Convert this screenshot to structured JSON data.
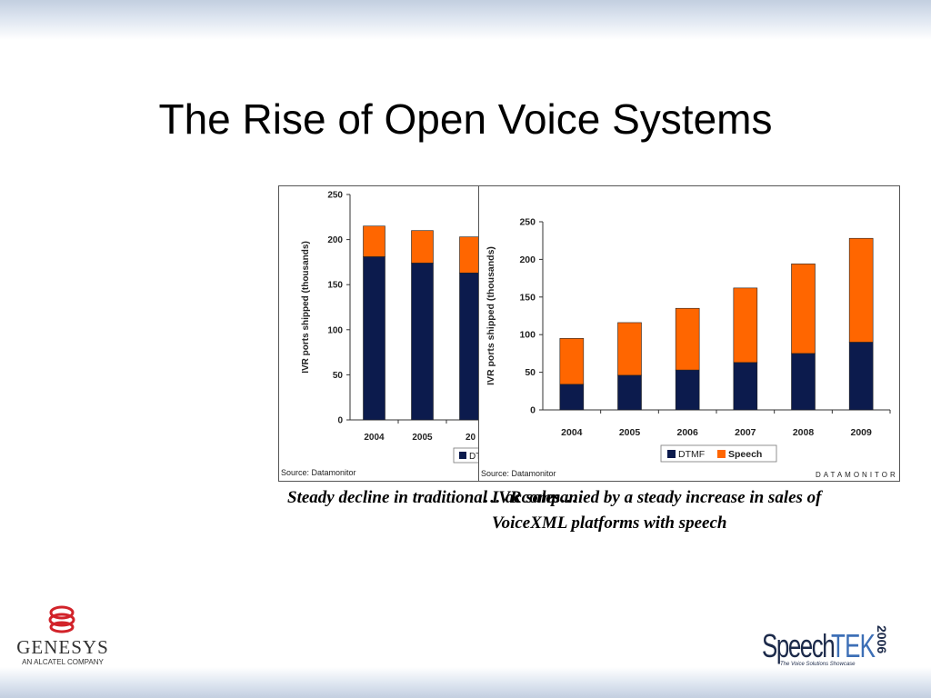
{
  "slide": {
    "title": "The Rise of Open Voice Systems",
    "caption_left": "Steady decline in traditional IVR sales…",
    "caption_right_line1": "… accompanied by a steady increase in sales of",
    "caption_right_line2": "VoiceXML platforms with speech"
  },
  "colors": {
    "dtmf": "#0c1b4d",
    "speech": "#ff6600"
  },
  "logos": {
    "left_name": "GENESYS",
    "left_sub": "AN ALCATEL COMPANY",
    "right_word1": "Speech",
    "right_word2": "TEK",
    "right_year": "2006",
    "right_tag": "The Voice Solutions Showcase"
  },
  "chart_data": [
    {
      "type": "bar",
      "stacked": true,
      "ylabel": "IVR ports shipped (thousands)",
      "ylim": [
        0,
        250
      ],
      "yticks": [
        "250",
        "200",
        "150",
        "100",
        "50",
        "0"
      ],
      "categories": [
        "2004",
        "2005",
        "20"
      ],
      "series": [
        {
          "name": "DTMF",
          "values": [
            181,
            174,
            163
          ]
        },
        {
          "name": "",
          "values": [
            34,
            36,
            40
          ]
        }
      ],
      "legend_visible": "DT",
      "source": "Source: Datamonitor"
    },
    {
      "type": "bar",
      "stacked": true,
      "ylabel": "IVR ports shipped (thousands)",
      "ylim": [
        0,
        250
      ],
      "yticks": [
        "250",
        "200",
        "150",
        "100",
        "50",
        "0"
      ],
      "categories": [
        "2004",
        "2005",
        "2006",
        "2007",
        "2008",
        "2009"
      ],
      "series": [
        {
          "name": "DTMF",
          "values": [
            34,
            46,
            53,
            63,
            75,
            90
          ]
        },
        {
          "name": "Speech",
          "values": [
            61,
            70,
            82,
            99,
            119,
            138
          ]
        }
      ],
      "legend": "bottom-center",
      "source": "Source: Datamonitor",
      "brand": "DATAMONITOR"
    }
  ]
}
